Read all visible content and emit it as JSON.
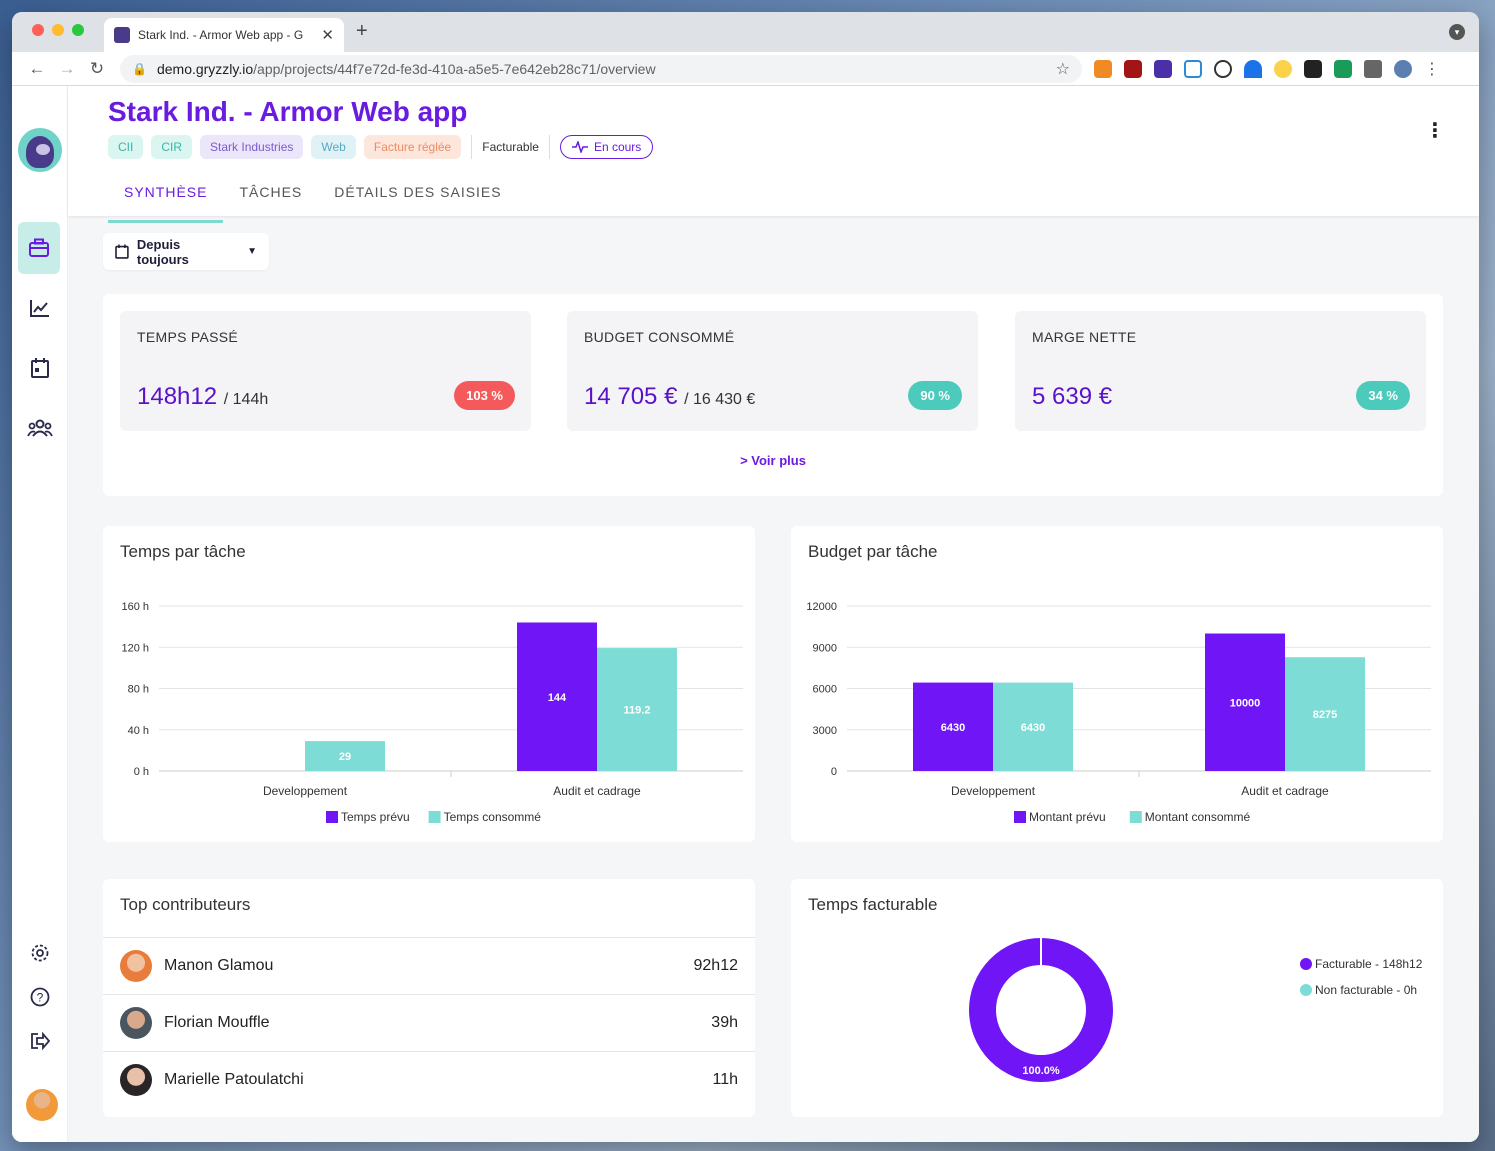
{
  "browser": {
    "tab_title": "Stark Ind. - Armor Web app - G",
    "url_host": "demo.gryzzly.io",
    "url_path": "/app/projects/44f7e72d-fe3d-410a-a5e5-7e642eb28c71/overview"
  },
  "project": {
    "title": "Stark Ind. - Armor Web app",
    "tags": [
      "CII",
      "CIR",
      "Stark Industries",
      "Web",
      "Facture réglée"
    ],
    "billing": "Facturable",
    "status": "En cours"
  },
  "tabs": [
    "SYNTHÈSE",
    "TÂCHES",
    "DÉTAILS DES SAISIES"
  ],
  "filter": {
    "label": "Depuis toujours"
  },
  "kpis": [
    {
      "label": "TEMPS PASSÉ",
      "value": "148h12",
      "sub": "/ 144h",
      "badge": "103 %",
      "badge_color": "#f4595b"
    },
    {
      "label": "BUDGET CONSOMMÉ",
      "value": "14 705 €",
      "sub": "/ 16 430 €",
      "badge": "90 %",
      "badge_color": "#4ccbbc"
    },
    {
      "label": "MARGE NETTE",
      "value": "5 639 €",
      "sub": "",
      "badge": "34 %",
      "badge_color": "#4ccbbc"
    }
  ],
  "voir_plus": "> Voir plus",
  "colors": {
    "accent": "#6a1be0",
    "bar_primary": "#7015f5",
    "bar_secondary": "#7ddcd6",
    "danger": "#f4595b"
  },
  "chart_data": [
    {
      "type": "bar",
      "title": "Temps par tâche",
      "categories": [
        "Developpement",
        "Audit et cadrage"
      ],
      "series": [
        {
          "name": "Temps prévu",
          "values": [
            0,
            144
          ],
          "labels": [
            "",
            "144"
          ]
        },
        {
          "name": "Temps consommé",
          "values": [
            29,
            119.2
          ],
          "labels": [
            "29",
            "119.2"
          ]
        }
      ],
      "ylim": [
        0,
        160
      ],
      "yticks": [
        "0 h",
        "40 h",
        "80 h",
        "120 h",
        "160 h"
      ],
      "ytick_values": [
        0,
        40,
        80,
        120,
        160
      ],
      "grid": true,
      "legend": "bottom"
    },
    {
      "type": "bar",
      "title": "Budget par tâche",
      "categories": [
        "Developpement",
        "Audit et cadrage"
      ],
      "series": [
        {
          "name": "Montant prévu",
          "values": [
            6430,
            10000
          ],
          "labels": [
            "6430",
            "10000"
          ]
        },
        {
          "name": "Montant consommé",
          "values": [
            6430,
            8275
          ],
          "labels": [
            "6430",
            "8275"
          ]
        }
      ],
      "ylim": [
        0,
        12000
      ],
      "yticks": [
        "0",
        "3000",
        "6000",
        "9000",
        "12000"
      ],
      "ytick_values": [
        0,
        3000,
        6000,
        9000,
        12000
      ],
      "grid": true,
      "legend": "bottom"
    },
    {
      "type": "pie",
      "title": "Temps facturable",
      "slices": [
        {
          "name": "Facturable - 148h12",
          "value": 100.0
        },
        {
          "name": "Non facturable - 0h",
          "value": 0
        }
      ],
      "center_label": "100.0%",
      "legend": "right"
    }
  ],
  "contributors": {
    "title": "Top contributeurs",
    "rows": [
      {
        "name": "Manon Glamou",
        "hours": "92h12"
      },
      {
        "name": "Florian Mouffle",
        "hours": "39h"
      },
      {
        "name": "Marielle Patoulatchi",
        "hours": "11h"
      }
    ]
  },
  "icons": {
    "sidebar": [
      "briefcase-icon",
      "chart-line-icon",
      "calendar-icon",
      "team-icon",
      "settings-icon",
      "help-icon",
      "logout-icon"
    ]
  }
}
